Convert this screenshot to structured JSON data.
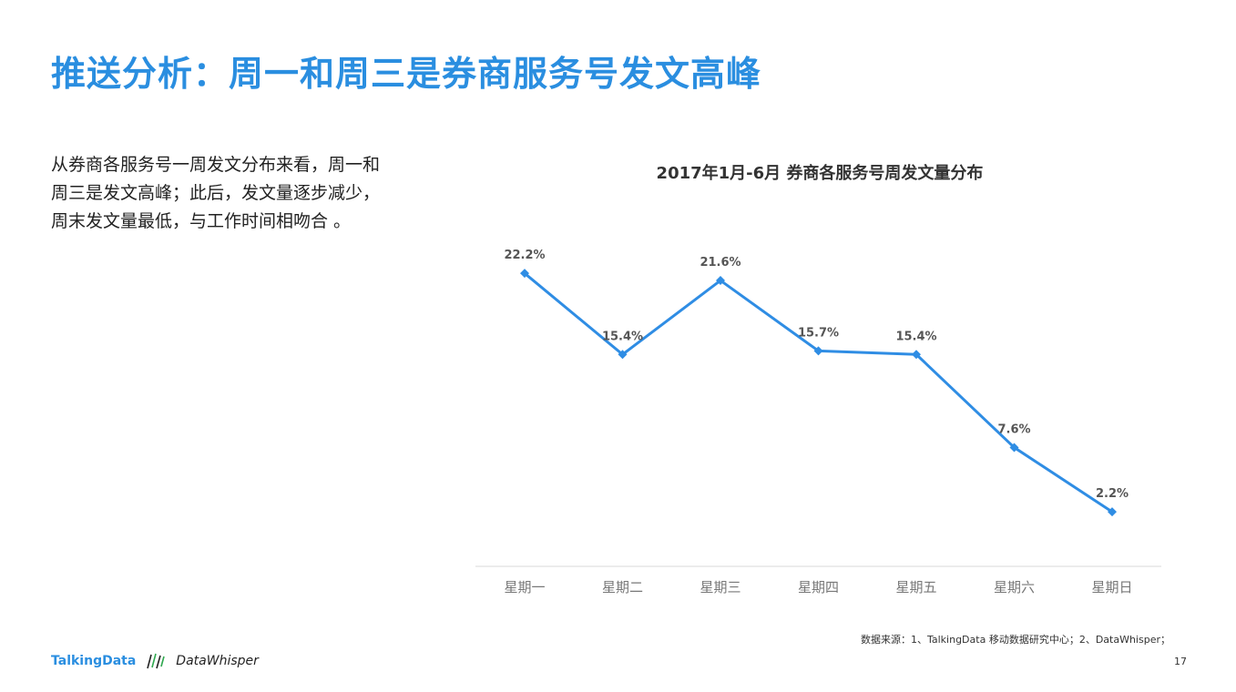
{
  "page": {
    "title": "推送分析：周一和周三是券商服务号发文高峰",
    "description_lines": [
      "从券商各服务号一周发文分布来看，周一和",
      "周三是发文高峰；此后，发文量逐步减少，",
      "周末发文量最低，与工作时间相吻合 。"
    ],
    "source": "数据来源：1、TalkingData 移动数据研究中心；2、DataWhisper；",
    "page_number": "17",
    "brand": {
      "talkingdata": "TalkingData",
      "datawhisper": "DataWhisper",
      "logo_icon": "datawhisper-bars-icon"
    }
  },
  "colors": {
    "title": "#2a8ee0",
    "line": "#2f8de4",
    "axis": "#d9d9d9"
  },
  "chart_data": {
    "type": "line",
    "title": "2017年1月-6月 券商各服务号周发文量分布",
    "xlabel": "",
    "ylabel": "",
    "categories": [
      "星期一",
      "星期二",
      "星期三",
      "星期四",
      "星期五",
      "星期六",
      "星期日"
    ],
    "series": [
      {
        "values": [
          22.2,
          15.4,
          21.6,
          15.7,
          15.4,
          7.6,
          2.2
        ],
        "labels": [
          "22.2%",
          "15.4%",
          "21.6%",
          "15.7%",
          "15.4%",
          "7.6%",
          "2.2%"
        ]
      }
    ],
    "grid": false,
    "legend": "none",
    "marker": "diamond"
  }
}
